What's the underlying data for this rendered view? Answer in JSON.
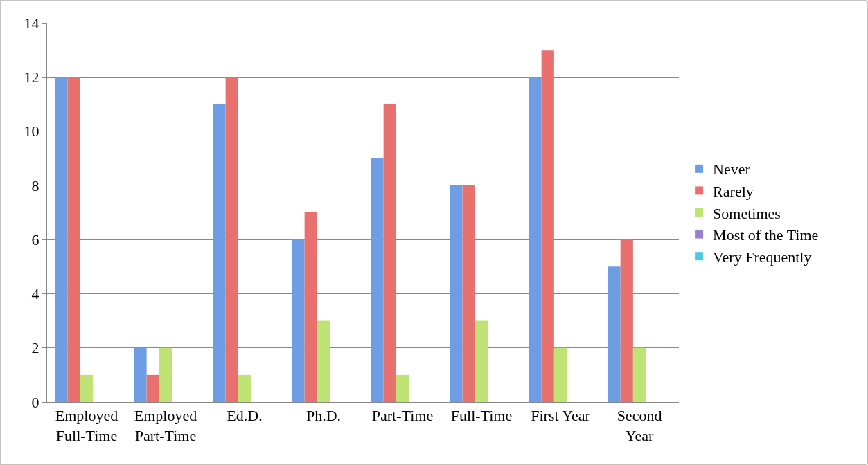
{
  "chart_data": {
    "type": "bar",
    "categories": [
      "Employed\nFull-Time",
      "Employed\nPart-Time",
      "Ed.D.",
      "Ph.D.",
      "Part-Time",
      "Full-Time",
      "First Year",
      "Second\nYear"
    ],
    "series": [
      {
        "name": "Never",
        "color": "#6f9de3",
        "values": [
          12,
          2,
          11,
          6,
          9,
          8,
          12,
          5
        ]
      },
      {
        "name": "Rarely",
        "color": "#e8716f",
        "values": [
          12,
          1,
          12,
          7,
          11,
          8,
          13,
          6
        ]
      },
      {
        "name": "Sometimes",
        "color": "#bfe374",
        "values": [
          1,
          2,
          1,
          3,
          1,
          3,
          2,
          2
        ]
      },
      {
        "name": "Most of the Time",
        "color": "#9b80cc",
        "values": [
          0,
          0,
          0,
          0,
          0,
          0,
          0,
          0
        ]
      },
      {
        "name": "Very Frequently",
        "color": "#4dc8e3",
        "values": [
          0,
          0,
          0,
          0,
          0,
          0,
          0,
          0
        ]
      }
    ],
    "ylim": [
      0,
      14
    ],
    "yticks": [
      0,
      2,
      4,
      6,
      8,
      10,
      12,
      14
    ],
    "grid": "y",
    "legend": "right"
  }
}
